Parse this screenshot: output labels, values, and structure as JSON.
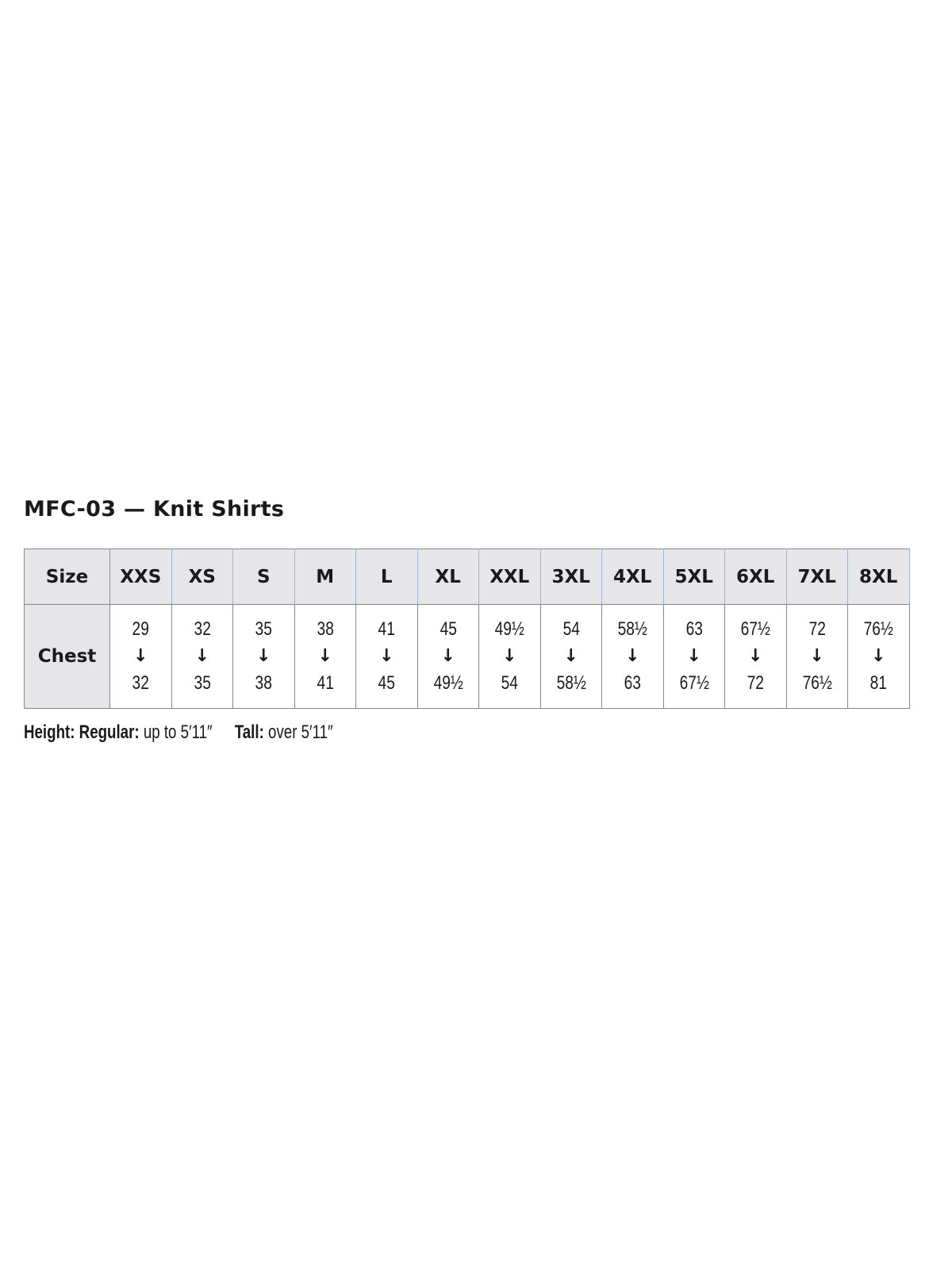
{
  "title": "MFC-03 — Knit Shirts",
  "table": {
    "header_label": "Size",
    "row_label": "Chest",
    "arrow_icon": "down-arrow",
    "sizes": [
      "XXS",
      "XS",
      "S",
      "M",
      "L",
      "XL",
      "XXL",
      "3XL",
      "4XL",
      "5XL",
      "6XL",
      "7XL",
      "8XL"
    ],
    "chest": [
      {
        "from": "29",
        "to": "32"
      },
      {
        "from": "32",
        "to": "35"
      },
      {
        "from": "35",
        "to": "38"
      },
      {
        "from": "38",
        "to": "41"
      },
      {
        "from": "41",
        "to": "45"
      },
      {
        "from": "45",
        "to": "49½"
      },
      {
        "from": "49½",
        "to": "54"
      },
      {
        "from": "54",
        "to": "58½"
      },
      {
        "from": "58½",
        "to": "63"
      },
      {
        "from": "63",
        "to": "67½"
      },
      {
        "from": "67½",
        "to": "72"
      },
      {
        "from": "72",
        "to": "76½"
      },
      {
        "from": "76½",
        "to": "81"
      }
    ]
  },
  "footer": {
    "height_label": "Height:",
    "regular_label": "Regular:",
    "regular_value": "up to 5′11″",
    "tall_label": "Tall:",
    "tall_value": "over 5′11″"
  }
}
